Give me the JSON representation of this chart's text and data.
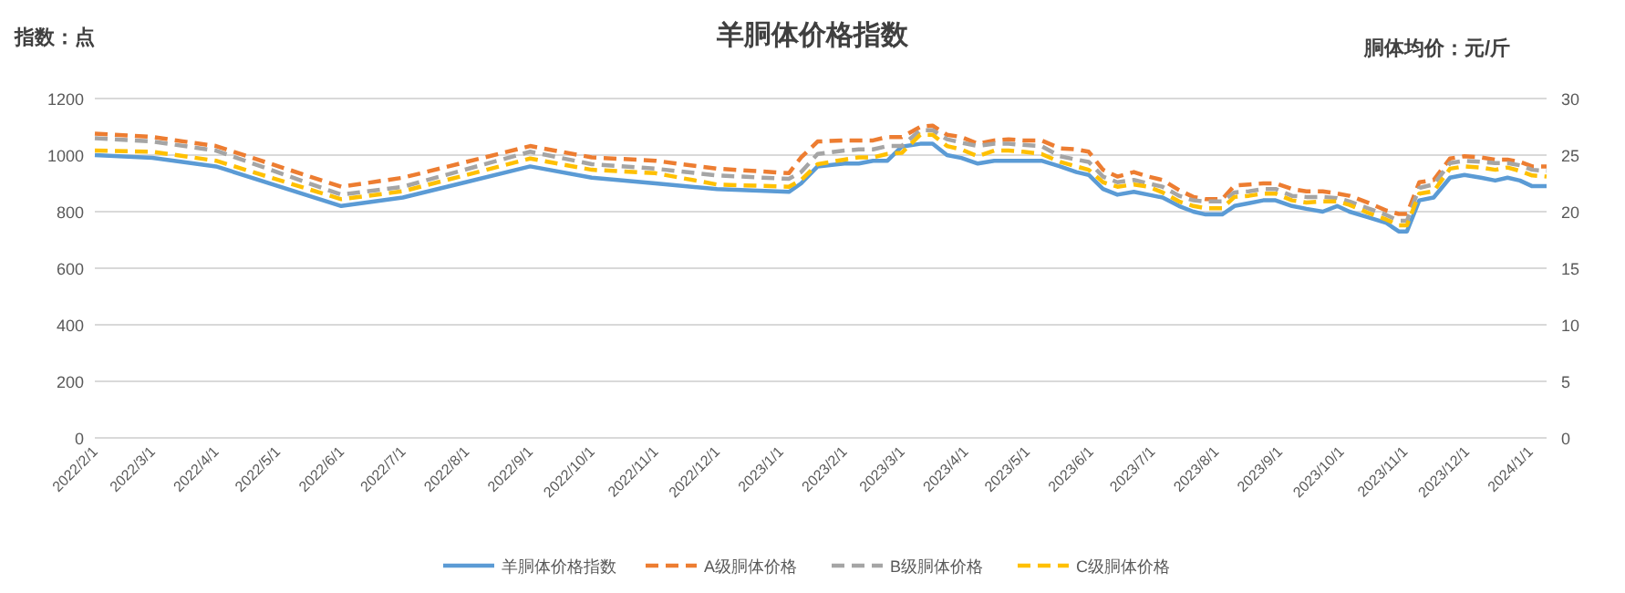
{
  "chart_data": {
    "type": "line",
    "title": "羊胴体价格指数",
    "ylabel": "指数：点",
    "y2label": "胴体均价：元/斤",
    "x": [
      "2022-02-01",
      "2022-03-01",
      "2022-04-01",
      "2022-06-01",
      "2022-07-01",
      "2022-09-01",
      "2022-10-01",
      "2022-11-01",
      "2022-12-01",
      "2023-01-05",
      "2023-01-11",
      "2023-01-19",
      "2023-02-01",
      "2023-02-08",
      "2023-02-15",
      "2023-02-22",
      "2023-03-01",
      "2023-03-10",
      "2023-03-16",
      "2023-03-23",
      "2023-03-30",
      "2023-04-07",
      "2023-04-15",
      "2023-04-22",
      "2023-04-29",
      "2023-05-08",
      "2023-05-17",
      "2023-05-25",
      "2023-05-31",
      "2023-06-07",
      "2023-06-14",
      "2023-06-22",
      "2023-06-29",
      "2023-07-06",
      "2023-07-14",
      "2023-07-21",
      "2023-07-27",
      "2023-08-04",
      "2023-08-10",
      "2023-08-17",
      "2023-08-24",
      "2023-08-30",
      "2023-09-07",
      "2023-09-14",
      "2023-09-22",
      "2023-09-29",
      "2023-10-05",
      "2023-10-14",
      "2023-10-23",
      "2023-10-29",
      "2023-11-02",
      "2023-11-08",
      "2023-11-15",
      "2023-11-23",
      "2023-11-30",
      "2023-12-08",
      "2023-12-15",
      "2023-12-21",
      "2023-12-27",
      "2024-01-02",
      "2024-01-09"
    ],
    "xlim": [
      "2022-02-01",
      "2024-01-09"
    ],
    "xticks": [
      {
        "value": "2022-02-01",
        "label": "2022/2/1"
      },
      {
        "value": "2022-03-01",
        "label": "2022/3/1"
      },
      {
        "value": "2022-04-01",
        "label": "2022/4/1"
      },
      {
        "value": "2022-05-01",
        "label": "2022/5/1"
      },
      {
        "value": "2022-06-01",
        "label": "2022/6/1"
      },
      {
        "value": "2022-07-01",
        "label": "2022/7/1"
      },
      {
        "value": "2022-08-01",
        "label": "2022/8/1"
      },
      {
        "value": "2022-09-01",
        "label": "2022/9/1"
      },
      {
        "value": "2022-10-01",
        "label": "2022/10/1"
      },
      {
        "value": "2022-11-01",
        "label": "2022/11/1"
      },
      {
        "value": "2022-12-01",
        "label": "2022/12/1"
      },
      {
        "value": "2023-01-01",
        "label": "2023/1/1"
      },
      {
        "value": "2023-02-01",
        "label": "2023/2/1"
      },
      {
        "value": "2023-03-01",
        "label": "2023/3/1"
      },
      {
        "value": "2023-04-01",
        "label": "2023/4/1"
      },
      {
        "value": "2023-05-01",
        "label": "2023/5/1"
      },
      {
        "value": "2023-06-01",
        "label": "2023/6/1"
      },
      {
        "value": "2023-07-01",
        "label": "2023/7/1"
      },
      {
        "value": "2023-08-01",
        "label": "2023/8/1"
      },
      {
        "value": "2023-09-01",
        "label": "2023/9/1"
      },
      {
        "value": "2023-10-01",
        "label": "2023/10/1"
      },
      {
        "value": "2023-11-01",
        "label": "2023/11/1"
      },
      {
        "value": "2023-12-01",
        "label": "2023/12/1"
      },
      {
        "value": "2024-01-01",
        "label": "2024/1/1"
      }
    ],
    "ylim": [
      0,
      1200
    ],
    "yticks": [
      0,
      200,
      400,
      600,
      800,
      1000,
      1200
    ],
    "y2lim": [
      0,
      30
    ],
    "y2ticks": [
      0,
      5,
      10,
      15,
      20,
      25,
      30
    ],
    "grid": "y",
    "legend": "bottom",
    "series": [
      {
        "name": "羊胴体价格指数",
        "color": "#5b9bd5",
        "line_style": "solid",
        "values": [
          1000,
          990,
          960,
          820,
          850,
          960,
          920,
          900,
          880,
          870,
          900,
          960,
          970,
          970,
          980,
          980,
          1030,
          1040,
          1040,
          1000,
          990,
          970,
          980,
          980,
          980,
          980,
          960,
          940,
          930,
          880,
          860,
          870,
          860,
          850,
          820,
          800,
          790,
          790,
          820,
          830,
          840,
          840,
          820,
          810,
          800,
          820,
          800,
          780,
          760,
          730,
          730,
          840,
          850,
          920,
          930,
          920,
          910,
          920,
          910,
          890,
          890
        ]
      },
      {
        "name": "A级胴体价格",
        "color": "#ed7d31",
        "line_style": "dashed",
        "axis": "y2",
        "values": [
          26.9,
          26.6,
          25.8,
          22.2,
          23.0,
          25.8,
          24.8,
          24.5,
          23.8,
          23.4,
          24.8,
          26.2,
          26.3,
          26.3,
          26.3,
          26.6,
          26.6,
          27.5,
          27.6,
          26.8,
          26.6,
          26.0,
          26.3,
          26.4,
          26.3,
          26.3,
          25.6,
          25.5,
          25.3,
          23.7,
          23.1,
          23.5,
          23.1,
          22.8,
          21.9,
          21.3,
          21.1,
          21.1,
          22.3,
          22.4,
          22.5,
          22.5,
          22.0,
          21.8,
          21.8,
          21.6,
          21.4,
          20.8,
          20.1,
          19.8,
          19.8,
          22.6,
          22.8,
          24.7,
          24.9,
          24.8,
          24.6,
          24.6,
          24.4,
          24.0,
          24.0
        ]
      },
      {
        "name": "B级胴体价格",
        "color": "#a5a5a5",
        "line_style": "dashed",
        "axis": "y2",
        "values": [
          26.5,
          26.2,
          25.4,
          21.5,
          22.2,
          25.3,
          24.2,
          23.8,
          23.2,
          22.9,
          23.5,
          25.1,
          25.4,
          25.5,
          25.5,
          25.8,
          25.8,
          27.2,
          27.2,
          26.4,
          26.1,
          25.8,
          26.0,
          26.0,
          25.9,
          25.8,
          24.9,
          24.6,
          24.4,
          23.1,
          22.6,
          22.8,
          22.5,
          22.2,
          21.4,
          21.0,
          20.9,
          20.9,
          21.7,
          21.8,
          22.0,
          22.0,
          21.4,
          21.3,
          21.3,
          21.2,
          20.9,
          20.3,
          19.7,
          19.2,
          19.2,
          22.1,
          22.4,
          24.3,
          24.5,
          24.4,
          24.3,
          24.3,
          24.1,
          23.7,
          23.6
        ]
      },
      {
        "name": "C级胴体价格",
        "color": "#ffc000",
        "line_style": "dashed",
        "axis": "y2",
        "values": [
          25.4,
          25.3,
          24.5,
          21.1,
          21.8,
          24.7,
          23.7,
          23.4,
          22.4,
          22.2,
          22.8,
          24.2,
          24.6,
          24.8,
          24.8,
          25.1,
          25.2,
          26.8,
          26.8,
          25.8,
          25.5,
          24.9,
          25.4,
          25.4,
          25.3,
          25.1,
          24.4,
          24.0,
          23.7,
          22.6,
          22.2,
          22.4,
          22.2,
          21.7,
          20.9,
          20.5,
          20.3,
          20.3,
          21.3,
          21.4,
          21.6,
          21.6,
          21.0,
          20.8,
          20.9,
          20.9,
          20.6,
          19.9,
          19.3,
          18.8,
          18.8,
          21.6,
          21.8,
          23.8,
          24.0,
          23.9,
          23.7,
          23.9,
          23.6,
          23.2,
          23.1
        ]
      }
    ]
  }
}
